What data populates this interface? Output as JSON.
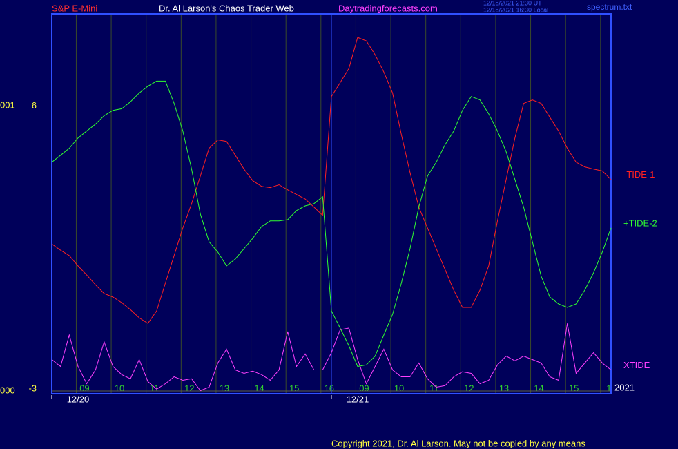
{
  "chart_data": {
    "type": "line",
    "header": {
      "left": "S&P E-Mini",
      "center": "Dr. Al Larson's Chaos Trader Web",
      "site": "Daytradingforecasts.com",
      "stamp_ut": "12/18/2021 21:30 UT",
      "stamp_local": "12/18/2021 16:30 Local",
      "file": "spectrum.txt"
    },
    "left_labels": {
      "top": "001",
      "bottom": "000"
    },
    "year": "2021",
    "footer": "Copyright 2021, Dr. Al Larson. May not be copied by any means",
    "dates": [
      {
        "x": 0.75,
        "label": "12/20"
      },
      {
        "x": 8.75,
        "label": "12/21"
      }
    ],
    "xlim": [
      0,
      16
    ],
    "ylim": [
      -3,
      9
    ],
    "yticks": [
      -3,
      6
    ],
    "xticks": [
      {
        "value": 0.7,
        "label": "09"
      },
      {
        "value": 1.7,
        "label": "10"
      },
      {
        "value": 2.7,
        "label": "11"
      },
      {
        "value": 3.7,
        "label": "12"
      },
      {
        "value": 4.7,
        "label": "13"
      },
      {
        "value": 5.7,
        "label": "14"
      },
      {
        "value": 6.7,
        "label": "15"
      },
      {
        "value": 7.7,
        "label": "16"
      },
      {
        "value": 8.7,
        "label": "09"
      },
      {
        "value": 9.7,
        "label": "10"
      },
      {
        "value": 10.7,
        "label": "11"
      },
      {
        "value": 11.7,
        "label": "12"
      },
      {
        "value": 12.7,
        "label": "13"
      },
      {
        "value": 13.7,
        "label": "14"
      },
      {
        "value": 14.7,
        "label": "15"
      },
      {
        "value": 15.7,
        "label": "1"
      }
    ],
    "grid": true,
    "x": [
      0,
      0.25,
      0.5,
      0.75,
      1,
      1.25,
      1.5,
      1.75,
      2,
      2.25,
      2.5,
      2.75,
      3,
      3.25,
      3.5,
      3.75,
      4,
      4.25,
      4.5,
      4.75,
      5,
      5.25,
      5.5,
      5.75,
      6,
      6.25,
      6.5,
      6.75,
      7,
      7.25,
      7.5,
      7.75,
      8,
      8.25,
      8.5,
      8.75,
      9,
      9.25,
      9.5,
      9.75,
      10,
      10.25,
      10.5,
      10.75,
      11,
      11.25,
      11.5,
      11.75,
      12,
      12.25,
      12.5,
      12.75,
      13,
      13.25,
      13.5,
      13.75,
      14,
      14.25,
      14.5,
      14.75,
      15,
      15.25,
      15.5,
      15.75,
      16
    ],
    "series": [
      {
        "name": "-TIDE-1",
        "color": "#ff2020",
        "values": [
          1.68,
          1.48,
          1.31,
          0.98,
          0.69,
          0.38,
          0.1,
          -0.01,
          -0.19,
          -0.41,
          -0.67,
          -0.85,
          -0.45,
          0.43,
          1.31,
          2.19,
          2.96,
          3.84,
          4.72,
          4.99,
          4.94,
          4.5,
          4.06,
          3.69,
          3.51,
          3.47,
          3.56,
          3.4,
          3.25,
          3.11,
          2.85,
          2.59,
          6.37,
          6.81,
          7.26,
          8.25,
          8.14,
          7.7,
          7.15,
          6.48,
          5.16,
          3.95,
          2.85,
          2.19,
          1.53,
          0.87,
          0.21,
          -0.34,
          -0.34,
          0.21,
          0.98,
          2.41,
          3.73,
          5.05,
          6.15,
          6.26,
          6.15,
          5.71,
          5.27,
          4.72,
          4.28,
          4.13,
          4.06,
          4.0,
          3.73
        ]
      },
      {
        "name": "+TIDE-2",
        "color": "#30ff30",
        "values": [
          4.28,
          4.5,
          4.72,
          5.05,
          5.27,
          5.49,
          5.76,
          5.93,
          5.98,
          6.2,
          6.48,
          6.7,
          6.86,
          6.86,
          6.15,
          5.27,
          4.06,
          2.63,
          1.75,
          1.42,
          0.98,
          1.2,
          1.53,
          1.86,
          2.23,
          2.41,
          2.41,
          2.45,
          2.74,
          2.89,
          2.96,
          3.18,
          -0.45,
          -1.0,
          -1.56,
          -2.22,
          -2.17,
          -1.89,
          -1.22,
          -0.56,
          0.43,
          1.53,
          2.85,
          3.84,
          4.28,
          4.83,
          5.27,
          5.93,
          6.37,
          6.26,
          5.82,
          5.27,
          4.61,
          3.73,
          2.85,
          1.75,
          0.65,
          -0.01,
          -0.23,
          -0.34,
          -0.23,
          0.21,
          0.76,
          1.42,
          2.19
        ]
      },
      {
        "name": "XTIDE",
        "color": "#ff40ff",
        "values": [
          -2.0,
          -2.22,
          -1.22,
          -2.22,
          -2.77,
          -2.33,
          -1.44,
          -2.22,
          -2.48,
          -2.61,
          -2.0,
          -2.7,
          -2.94,
          -2.77,
          -2.55,
          -2.66,
          -2.61,
          -2.99,
          -2.88,
          -2.11,
          -1.67,
          -2.33,
          -2.44,
          -2.37,
          -2.48,
          -2.66,
          -2.33,
          -1.11,
          -2.22,
          -1.82,
          -2.33,
          -2.33,
          -1.78,
          -1.05,
          -1.0,
          -2.0,
          -2.77,
          -2.22,
          -1.67,
          -2.33,
          -2.55,
          -2.55,
          -2.11,
          -2.61,
          -2.88,
          -2.83,
          -2.55,
          -2.39,
          -2.44,
          -2.77,
          -2.66,
          -2.17,
          -1.89,
          -2.04,
          -1.89,
          -2.0,
          -2.11,
          -2.55,
          -2.66,
          -0.85,
          -2.44,
          -2.11,
          -1.78,
          -2.11,
          -2.33
        ]
      }
    ]
  }
}
